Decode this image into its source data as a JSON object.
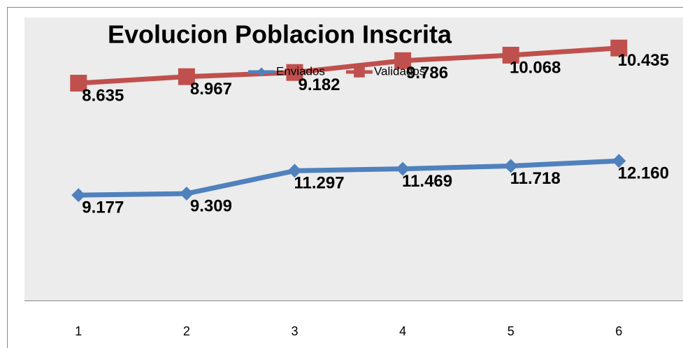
{
  "chart_data": {
    "type": "line",
    "title": "Evolucion  Poblacion Inscrita",
    "categories": [
      "1",
      "2",
      "3",
      "4",
      "5",
      "6"
    ],
    "series": [
      {
        "name": "Enviados",
        "color": "#4f81bd",
        "values": [
          9177,
          9309,
          11297,
          11469,
          11718,
          12160
        ],
        "value_labels": [
          "9.177",
          "9.309",
          "11.297",
          "11.469",
          "11.718",
          "12.160"
        ]
      },
      {
        "name": "Validados",
        "color": "#c0504d",
        "axis": "y2",
        "values": [
          8635,
          8967,
          9182,
          9786,
          10068,
          10435
        ],
        "value_labels": [
          "8.635",
          "8.967",
          "9.182",
          "9.786",
          "10.068",
          "10.435"
        ]
      }
    ],
    "ylim": [
      0,
      24650
    ],
    "y2lim": [
      -2500,
      12000
    ],
    "legend": "top"
  }
}
